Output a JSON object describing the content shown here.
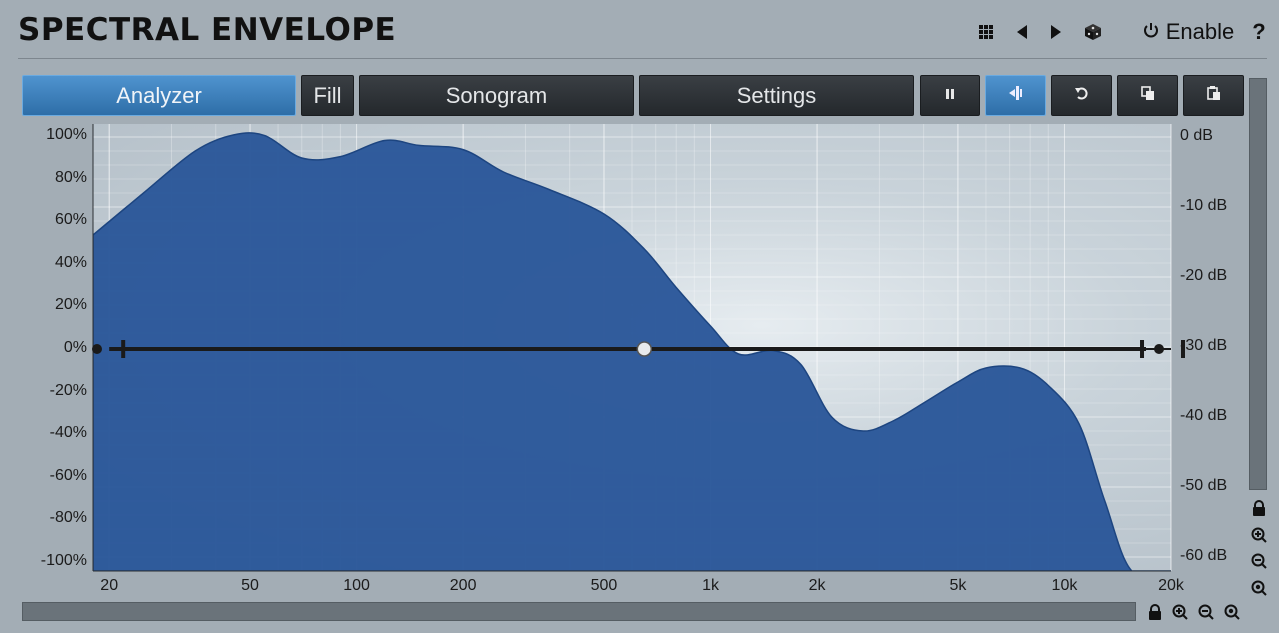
{
  "header": {
    "title": "SPECTRAL ENVELOPE",
    "enable_label": "Enable",
    "help_label": "?"
  },
  "toolbar": {
    "analyzer": "Analyzer",
    "fill": "Fill",
    "sonogram": "Sonogram",
    "settings": "Settings"
  },
  "icons": {
    "presets": "grid-icon",
    "prev": "triangle-left-icon",
    "next": "triangle-right-icon",
    "random": "dice-icon",
    "power": "power-icon",
    "pause": "pause-icon",
    "freeze": "freeze-icon",
    "reset": "reset-icon",
    "copy": "copy-icon",
    "paste": "paste-icon",
    "lock": "lock-icon",
    "zoom_in": "zoom-in-icon",
    "zoom_out": "zoom-out-icon",
    "zoom_fit": "zoom-fit-icon"
  },
  "colors": {
    "accent": "#3b82c4",
    "spectrum_fill": "#2a5699",
    "spectrum_edge": "#1d4580",
    "background": "#a3adb5"
  },
  "chart_data": {
    "type": "area",
    "x_scale": "log",
    "xlim": [
      18,
      20000
    ],
    "x_ticks": [
      "20",
      "50",
      "100",
      "200",
      "500",
      "1k",
      "2k",
      "5k",
      "10k",
      "20k"
    ],
    "x_tick_values": [
      20,
      50,
      100,
      200,
      500,
      1000,
      2000,
      5000,
      10000,
      20000
    ],
    "y_left_ticks": [
      "100%",
      "80%",
      "60%",
      "40%",
      "20%",
      "0%",
      "-20%",
      "-40%",
      "-60%",
      "-80%",
      "-100%"
    ],
    "y_left_values": [
      100,
      80,
      60,
      40,
      20,
      0,
      -20,
      -40,
      -60,
      -80,
      -100
    ],
    "ylim_left": [
      -100,
      100
    ],
    "y_right_ticks": [
      "0 dB",
      "-10 dB",
      "-20 dB",
      "-30 dB",
      "-40 dB",
      "-50 dB",
      "-60 dB"
    ],
    "y_right_values": [
      0,
      -10,
      -20,
      -30,
      -40,
      -50,
      -60
    ],
    "ylim_right": [
      -60,
      0
    ],
    "series": [
      {
        "type": "area",
        "x": [
          18,
          25,
          35,
          45,
          55,
          70,
          90,
          120,
          150,
          200,
          260,
          350,
          500,
          650,
          800,
          1000,
          1200,
          1500,
          1800,
          2200,
          2700,
          3300,
          4000,
          5000,
          6000,
          7500,
          9000,
          11000,
          13000,
          15500,
          20000
        ],
        "y_db": [
          -14,
          -8,
          -2,
          0.3,
          0.2,
          -3,
          -2.8,
          -0.5,
          -1.2,
          -1.8,
          -5,
          -7.5,
          -11,
          -16,
          -21.5,
          -27,
          -31,
          -30.5,
          -32.5,
          -40,
          -42,
          -40.5,
          -38,
          -35,
          -33,
          -33,
          -35.5,
          -41,
          -52,
          -62,
          -62
        ]
      },
      {
        "type": "envelope",
        "x": [
          18,
          20,
          650,
          17000,
          18500,
          20000
        ],
        "y_percent": [
          0,
          0,
          0,
          0,
          0,
          0
        ]
      }
    ]
  }
}
